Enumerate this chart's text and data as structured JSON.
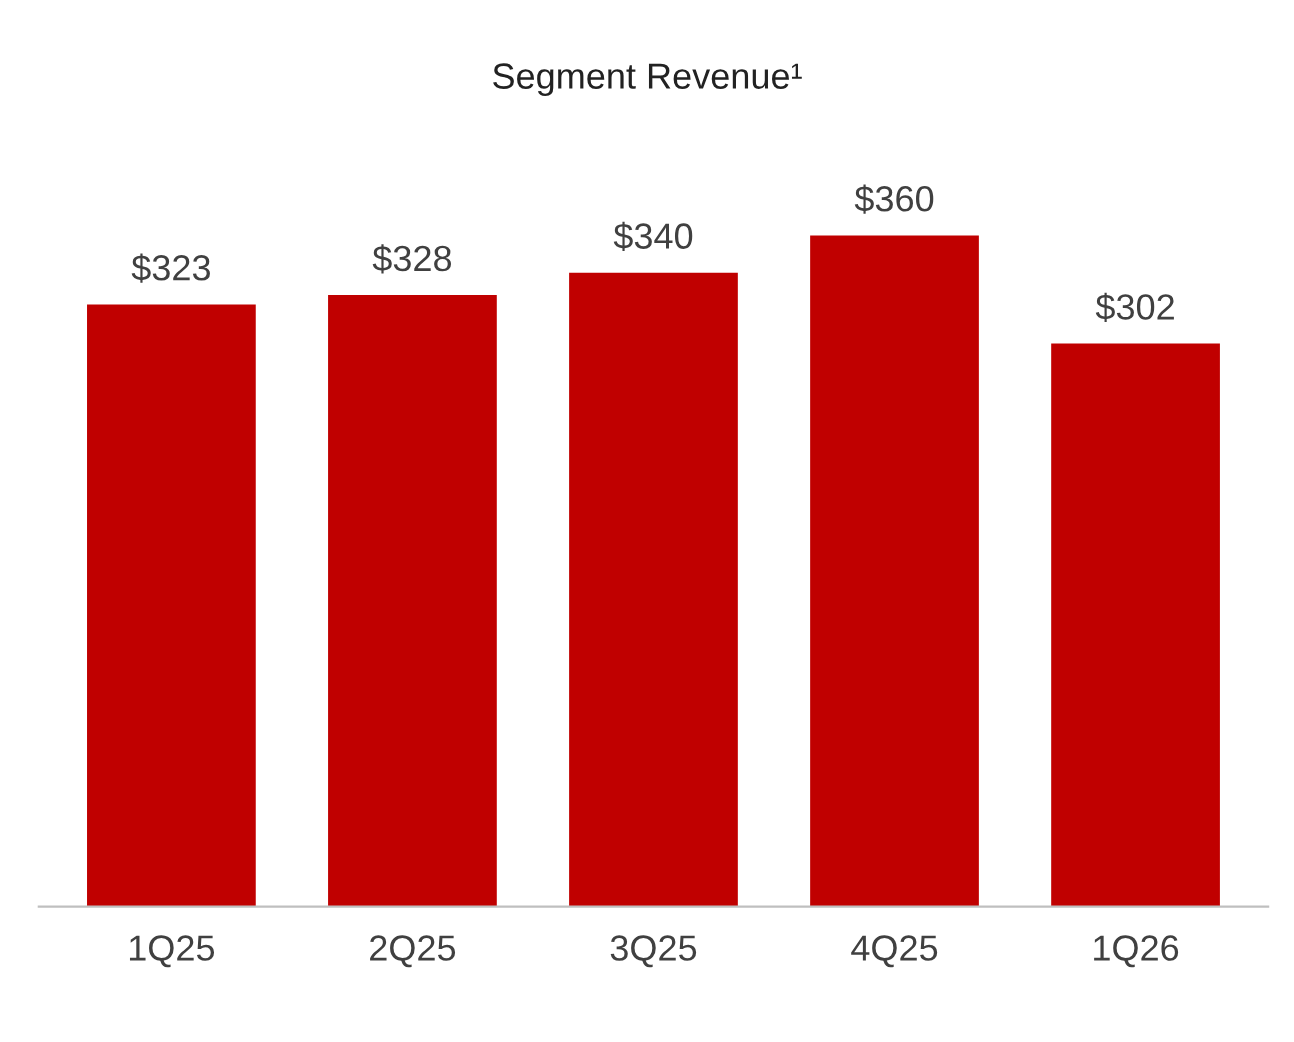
{
  "chart_data": {
    "type": "bar",
    "title": "Segment Revenue¹",
    "categories": [
      "1Q25",
      "2Q25",
      "3Q25",
      "4Q25",
      "1Q26"
    ],
    "values": [
      323,
      328,
      340,
      360,
      302
    ],
    "value_labels": [
      "$323",
      "$328",
      "$340",
      "$360",
      "$302"
    ],
    "color": "#c00000",
    "grid": false,
    "legend": false
  }
}
